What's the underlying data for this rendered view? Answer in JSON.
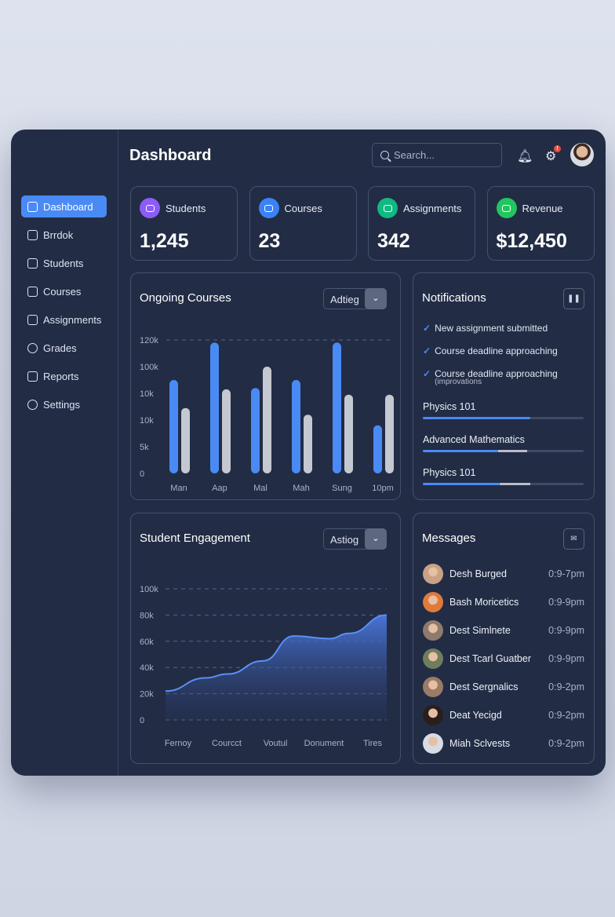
{
  "header": {
    "title": "Dashboard",
    "search_placeholder": "Search...",
    "notification_badge": "!"
  },
  "sidebar": {
    "items": [
      {
        "label": "Dashboard",
        "icon": "dashboard-icon",
        "active": true
      },
      {
        "label": "Brrdok",
        "icon": "bookmark-icon"
      },
      {
        "label": "Students",
        "icon": "calendar-icon"
      },
      {
        "label": "Courses",
        "icon": "course-icon"
      },
      {
        "label": "Assignments",
        "icon": "assignment-icon"
      },
      {
        "label": "Grades",
        "icon": "clock-icon"
      },
      {
        "label": "Reports",
        "icon": "report-icon"
      },
      {
        "label": "Settings",
        "icon": "gear-icon"
      }
    ]
  },
  "stats": [
    {
      "label": "Students",
      "value": "1,245",
      "color": "#8b5cf6"
    },
    {
      "label": "Courses",
      "value": "23",
      "color": "#3b82f6"
    },
    {
      "label": "Assignments",
      "value": "342",
      "color": "#10b981"
    },
    {
      "label": "Revenue",
      "value": "$12,450",
      "color": "#22c55e"
    }
  ],
  "ongoing": {
    "title": "Ongoing Courses",
    "select": "Adtieg"
  },
  "engagement": {
    "title": "Student Engagement",
    "select": "Astiog"
  },
  "notifications": {
    "title": "Notifications",
    "items": [
      {
        "text": "New assignment submitted"
      },
      {
        "text": "Course deadline approaching"
      },
      {
        "text": "Course deadline approaching",
        "sub": "(improvations"
      }
    ],
    "progress": [
      {
        "label": "Physics 101",
        "value": 0.67,
        "secondary": 0.67
      },
      {
        "label": "Advanced Mathematics",
        "value": 0.47,
        "secondary": 0.65
      },
      {
        "label": "Physics 101",
        "value": 0.48,
        "secondary": 0.67
      }
    ]
  },
  "messages": {
    "title": "Messages",
    "items": [
      {
        "name": "Desh Burged",
        "time": "0:9-7pm"
      },
      {
        "name": "Bash Moricetics",
        "time": "0:9-9pm"
      },
      {
        "name": "Dest Simlnete",
        "time": "0:9-9pm"
      },
      {
        "name": "Dest Tcarl Guatber",
        "time": "0:9-9pm"
      },
      {
        "name": "Dest Sergnalics",
        "time": "0:9-2pm"
      },
      {
        "name": "Deat Yecigd",
        "time": "0:9-2pm"
      },
      {
        "name": "Miah Sclvests",
        "time": "0:9-2pm"
      }
    ]
  },
  "chart_data": [
    {
      "type": "bar",
      "title": "Ongoing Courses",
      "categories": [
        "Man",
        "Aap",
        "Mal",
        "Mah",
        "Sung",
        "10pm"
      ],
      "ytick_labels": [
        "0",
        "5k",
        "10k",
        "10k",
        "100k",
        "120k"
      ],
      "ylim": [
        0,
        5
      ],
      "series": [
        {
          "name": "primary",
          "color": "#4a8af4",
          "values": [
            3.5,
            4.9,
            3.2,
            3.5,
            4.9,
            1.8
          ]
        },
        {
          "name": "secondary",
          "color": "#c4c8d1",
          "values": [
            2.45,
            3.15,
            4.0,
            2.2,
            2.95,
            2.95
          ]
        }
      ]
    },
    {
      "type": "area",
      "title": "Student Engagement",
      "categories": [
        "Fernoy",
        "Courcct",
        "Voutul",
        "Donument",
        "Tires"
      ],
      "ytick_labels": [
        "0",
        "20k",
        "40k",
        "60k",
        "80k",
        "100k"
      ],
      "ylim": [
        0,
        100
      ],
      "x": [
        0,
        0.18,
        0.28,
        0.44,
        0.58,
        0.74,
        0.83,
        1
      ],
      "y": [
        22,
        32,
        35,
        45,
        64,
        62,
        66,
        80
      ]
    }
  ]
}
